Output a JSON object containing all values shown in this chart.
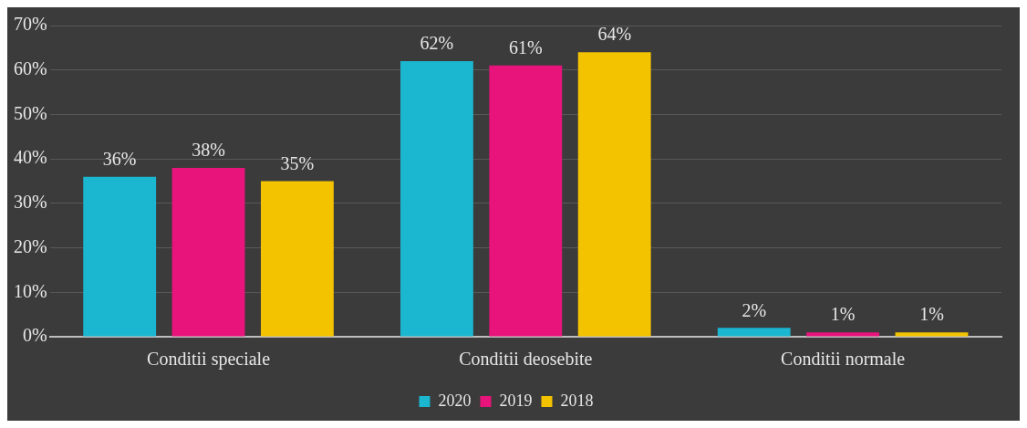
{
  "chart_data": {
    "type": "bar",
    "categories": [
      "Conditii speciale",
      "Conditii deosebite",
      "Conditii normale"
    ],
    "series": [
      {
        "name": "2020",
        "color": "#1bb6cf",
        "values": [
          36,
          62,
          2
        ],
        "value_labels": [
          "36%",
          "62%",
          "2%"
        ]
      },
      {
        "name": "2019",
        "color": "#e8147c",
        "values": [
          38,
          61,
          1
        ],
        "value_labels": [
          "38%",
          "61%",
          "1%"
        ]
      },
      {
        "name": "2018",
        "color": "#f4c300",
        "values": [
          35,
          64,
          1
        ],
        "value_labels": [
          "35%",
          "64%",
          "1%"
        ]
      }
    ],
    "ylim": [
      0,
      70
    ],
    "yticks": [
      {
        "value": 0,
        "label": "0%"
      },
      {
        "value": 10,
        "label": "10%"
      },
      {
        "value": 20,
        "label": "20%"
      },
      {
        "value": 30,
        "label": "30%"
      },
      {
        "value": 40,
        "label": "40%"
      },
      {
        "value": 50,
        "label": "50%"
      },
      {
        "value": 60,
        "label": "60%"
      },
      {
        "value": 70,
        "label": "70%"
      }
    ],
    "grid": "y",
    "legend": "bottom"
  }
}
